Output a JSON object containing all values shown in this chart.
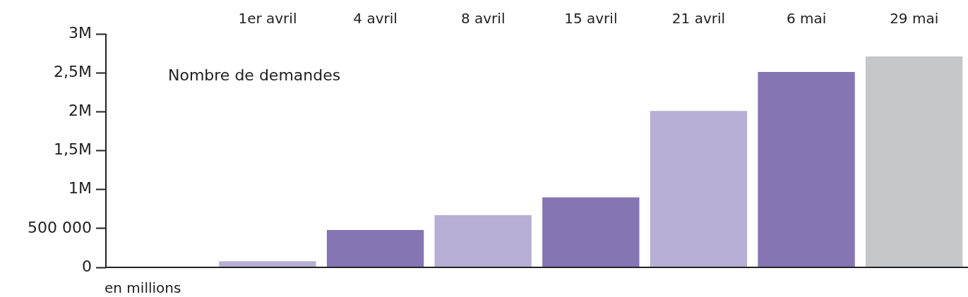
{
  "chart_data": {
    "type": "bar",
    "title": "Nombre de demandes",
    "categories": [
      null,
      "1er avril",
      "4 avril",
      "8 avril",
      "15 avril",
      "21 avril",
      "6 mai",
      "29 mai"
    ],
    "values": [
      null,
      80000,
      480000,
      670000,
      900000,
      2010000,
      2510000,
      2710000
    ],
    "colors": [
      "#b7afd5",
      "#b7afd5",
      "#8675b3",
      "#b7afd5",
      "#8675b3",
      "#b7afd5",
      "#8675b3",
      "#c6c7c9"
    ],
    "ylim": [
      0,
      3000000
    ],
    "yticks": [
      0,
      {
        "value": 500000,
        "label": "500 000"
      },
      {
        "value": 1000000,
        "label": "1M"
      },
      {
        "value": 1500000,
        "label": "1,5M"
      },
      {
        "value": 2000000,
        "label": "2M"
      },
      {
        "value": 2500000,
        "label": "2,5M"
      },
      {
        "value": 3000000,
        "label": "3M"
      }
    ],
    "annotations": [
      "en millions"
    ],
    "grid": false,
    "legend": false
  }
}
